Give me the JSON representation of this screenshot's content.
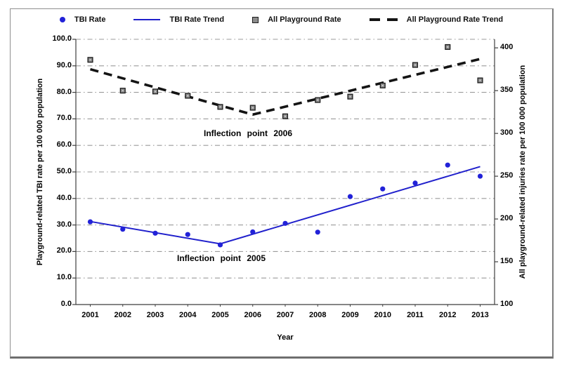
{
  "legend": {
    "items": [
      {
        "label": "TBI Rate",
        "swatch": "dot"
      },
      {
        "label": "TBI Rate Trend",
        "swatch": "line"
      },
      {
        "label": "All Playground Rate",
        "swatch": "square"
      },
      {
        "label": "All Playground Rate Trend",
        "swatch": "dashes"
      }
    ]
  },
  "colors": {
    "tbi_marker": "#2222D8",
    "tbi_trend": "#2020CC",
    "all_marker_fill": "#8C8C8C",
    "all_marker_border": "#1C1C1C",
    "all_trend": "#141414",
    "gridline": "#9A9A9A",
    "axis_line": "#3F3F3F"
  },
  "chart_data": {
    "type": "scatter",
    "x": [
      2001,
      2002,
      2003,
      2004,
      2005,
      2006,
      2007,
      2008,
      2009,
      2010,
      2011,
      2012,
      2013
    ],
    "series": [
      {
        "name": "TBI Rate",
        "axis": "left",
        "style": "points",
        "marker": "circle",
        "values": [
          31.2,
          28.4,
          26.9,
          26.4,
          22.5,
          27.4,
          30.6,
          27.3,
          40.7,
          43.6,
          45.8,
          52.6,
          48.4
        ]
      },
      {
        "name": "TBI Rate Trend",
        "axis": "left",
        "style": "trendline",
        "dashed": false,
        "points": [
          {
            "x": 2001,
            "y": 31.3
          },
          {
            "x": 2005,
            "y": 22.9
          },
          {
            "x": 2013,
            "y": 52.0
          }
        ]
      },
      {
        "name": "All Playground Rate",
        "axis": "right",
        "style": "points",
        "marker": "square",
        "values": [
          386,
          350,
          349,
          344,
          331,
          330,
          320,
          339,
          343,
          356,
          380,
          401,
          362
        ]
      },
      {
        "name": "All Playground Rate Trend",
        "axis": "right",
        "style": "trendline",
        "dashed": true,
        "points": [
          {
            "x": 2001,
            "y": 375
          },
          {
            "x": 2006,
            "y": 322
          },
          {
            "x": 2013,
            "y": 387
          }
        ]
      }
    ],
    "left_axis": {
      "label": "Playground-related TBI rate per 100 000 population",
      "min": 0,
      "max": 100,
      "tick_step": 10,
      "ticks": [
        100,
        90,
        80,
        70,
        60,
        50,
        40,
        30,
        20,
        10,
        0
      ],
      "tick_labels": [
        "100.0",
        "90.0",
        "80.0",
        "70.0",
        "60.0",
        "50.0",
        "40.0",
        "30.0",
        "20.0",
        "10.0",
        "0.0"
      ]
    },
    "right_axis": {
      "label": "All playground-related injuries rate per 100 000 population",
      "min": 100,
      "max": 410,
      "tick_step": 50,
      "ticks": [
        400,
        350,
        300,
        250,
        200,
        150,
        100
      ],
      "tick_labels": [
        "400",
        "350",
        "300",
        "250",
        "200",
        "150",
        "100"
      ]
    },
    "x_axis": {
      "label": "Year"
    },
    "annotations": [
      {
        "text": "Inflection point 2006"
      },
      {
        "text": "Inflection point 2005"
      }
    ],
    "grid": "horizontal dash-dot",
    "legend_position": "top"
  }
}
